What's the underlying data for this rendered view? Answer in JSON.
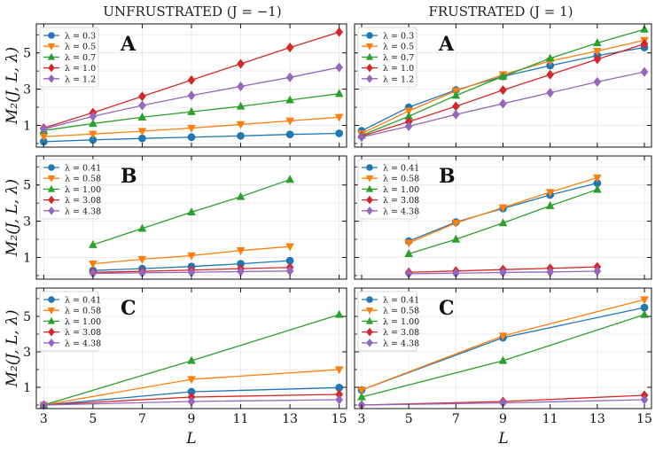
{
  "figure": {
    "col_titles": [
      "UNFRUSTRATED (J = −1)",
      "FRUSTRATED (J = 1)"
    ],
    "ylabel": "M₂(J, L, λ)",
    "xlabel": "L"
  },
  "chart_data": [
    {
      "type": "line",
      "row": 0,
      "col": 0,
      "panel_label": "A",
      "x": [
        3,
        5,
        7,
        9,
        11,
        13,
        15
      ],
      "xlim": [
        2.7,
        15.3
      ],
      "ylim": [
        -0.2,
        6.6
      ],
      "xticks": [
        3,
        5,
        7,
        9,
        11,
        13,
        15
      ],
      "yticks": [
        1,
        3,
        5
      ],
      "grid": true,
      "legend": "top-left",
      "series": [
        {
          "name": "λ = 0.3",
          "color": "#1f77b4",
          "marker": "circle",
          "x": [
            3,
            5,
            7,
            9,
            11,
            13,
            15
          ],
          "values": [
            0.1,
            0.2,
            0.28,
            0.35,
            0.42,
            0.5,
            0.56
          ]
        },
        {
          "name": "λ = 0.5",
          "color": "#ff7f0e",
          "marker": "triangle-down",
          "x": [
            3,
            5,
            7,
            9,
            11,
            13,
            15
          ],
          "values": [
            0.38,
            0.52,
            0.68,
            0.85,
            1.05,
            1.25,
            1.45
          ]
        },
        {
          "name": "λ = 0.7",
          "color": "#2ca02c",
          "marker": "triangle-up",
          "x": [
            3,
            5,
            7,
            9,
            11,
            13,
            15
          ],
          "values": [
            0.72,
            1.1,
            1.45,
            1.75,
            2.05,
            2.4,
            2.75
          ]
        },
        {
          "name": "λ = 1.0",
          "color": "#d62728",
          "marker": "diamond",
          "x": [
            3,
            5,
            7,
            9,
            11,
            13,
            15
          ],
          "values": [
            0.85,
            1.7,
            2.6,
            3.5,
            4.4,
            5.3,
            6.15
          ]
        },
        {
          "name": "λ = 1.2",
          "color": "#9467bd",
          "marker": "diamond",
          "x": [
            3,
            5,
            7,
            9,
            11,
            13,
            15
          ],
          "values": [
            0.8,
            1.5,
            2.1,
            2.65,
            3.15,
            3.65,
            4.2
          ]
        }
      ]
    },
    {
      "type": "line",
      "row": 0,
      "col": 1,
      "panel_label": "A",
      "x": [
        3,
        5,
        7,
        9,
        11,
        13,
        15
      ],
      "xlim": [
        2.7,
        15.3
      ],
      "ylim": [
        -0.2,
        6.6
      ],
      "xticks": [
        3,
        5,
        7,
        9,
        11,
        13,
        15
      ],
      "yticks": [
        1,
        3,
        5
      ],
      "grid": true,
      "legend": "top-left",
      "series": [
        {
          "name": "λ = 0.3",
          "color": "#1f77b4",
          "marker": "circle",
          "x": [
            3,
            5,
            7,
            9,
            11,
            13,
            15
          ],
          "values": [
            0.7,
            2.0,
            2.95,
            3.7,
            4.3,
            4.85,
            5.3
          ]
        },
        {
          "name": "λ = 0.5",
          "color": "#ff7f0e",
          "marker": "triangle-down",
          "x": [
            3,
            5,
            7,
            9,
            11,
            13,
            15
          ],
          "values": [
            0.55,
            1.8,
            2.9,
            3.8,
            4.55,
            5.1,
            5.7
          ]
        },
        {
          "name": "λ = 0.7",
          "color": "#2ca02c",
          "marker": "triangle-up",
          "x": [
            3,
            5,
            7,
            9,
            11,
            13,
            15
          ],
          "values": [
            0.45,
            1.5,
            2.65,
            3.7,
            4.7,
            5.55,
            6.3
          ]
        },
        {
          "name": "λ = 1.0",
          "color": "#d62728",
          "marker": "diamond",
          "x": [
            3,
            5,
            7,
            9,
            11,
            13,
            15
          ],
          "values": [
            0.4,
            1.2,
            2.05,
            2.95,
            3.8,
            4.65,
            5.5
          ]
        },
        {
          "name": "λ = 1.2",
          "color": "#9467bd",
          "marker": "diamond",
          "x": [
            3,
            5,
            7,
            9,
            11,
            13,
            15
          ],
          "values": [
            0.35,
            0.95,
            1.6,
            2.2,
            2.8,
            3.4,
            3.95
          ]
        }
      ]
    },
    {
      "type": "line",
      "row": 1,
      "col": 0,
      "panel_label": "B",
      "x": [
        5,
        7,
        9,
        11,
        13
      ],
      "xlim": [
        2.7,
        15.3
      ],
      "ylim": [
        -0.2,
        6.6
      ],
      "xticks": [
        3,
        5,
        7,
        9,
        11,
        13,
        15
      ],
      "yticks": [
        1,
        3,
        5
      ],
      "grid": true,
      "legend": "top-left",
      "series": [
        {
          "name": "λ = 0.41",
          "color": "#1f77b4",
          "marker": "circle",
          "x": [
            5,
            7,
            9,
            11,
            13
          ],
          "values": [
            0.28,
            0.38,
            0.5,
            0.65,
            0.82
          ]
        },
        {
          "name": "λ = 0.58",
          "color": "#ff7f0e",
          "marker": "triangle-down",
          "x": [
            5,
            7,
            9,
            11,
            13
          ],
          "values": [
            0.65,
            0.9,
            1.1,
            1.38,
            1.6
          ]
        },
        {
          "name": "λ = 1.00",
          "color": "#2ca02c",
          "marker": "triangle-up",
          "x": [
            5,
            7,
            9,
            11,
            13
          ],
          "values": [
            1.7,
            2.6,
            3.5,
            4.35,
            5.3
          ]
        },
        {
          "name": "λ = 3.08",
          "color": "#d62728",
          "marker": "diamond",
          "x": [
            5,
            7,
            9,
            11,
            13
          ],
          "values": [
            0.18,
            0.23,
            0.3,
            0.38,
            0.45
          ]
        },
        {
          "name": "λ = 4.38",
          "color": "#9467bd",
          "marker": "diamond",
          "x": [
            5,
            7,
            9,
            11,
            13
          ],
          "values": [
            0.12,
            0.15,
            0.18,
            0.22,
            0.25
          ]
        }
      ]
    },
    {
      "type": "line",
      "row": 1,
      "col": 1,
      "panel_label": "B",
      "x": [
        5,
        7,
        9,
        11,
        13
      ],
      "xlim": [
        2.7,
        15.3
      ],
      "ylim": [
        -0.2,
        6.6
      ],
      "xticks": [
        3,
        5,
        7,
        9,
        11,
        13,
        15
      ],
      "yticks": [
        1,
        3,
        5
      ],
      "grid": true,
      "legend": "top-left",
      "series": [
        {
          "name": "λ = 0.41",
          "color": "#1f77b4",
          "marker": "circle",
          "x": [
            5,
            7,
            9,
            11,
            13
          ],
          "values": [
            1.9,
            2.95,
            3.7,
            4.45,
            5.1
          ]
        },
        {
          "name": "λ = 0.58",
          "color": "#ff7f0e",
          "marker": "triangle-down",
          "x": [
            5,
            7,
            9,
            11,
            13
          ],
          "values": [
            1.8,
            2.9,
            3.75,
            4.6,
            5.4
          ]
        },
        {
          "name": "λ = 1.00",
          "color": "#2ca02c",
          "marker": "triangle-up",
          "x": [
            5,
            7,
            9,
            11,
            13
          ],
          "values": [
            1.2,
            2.0,
            2.9,
            3.85,
            4.75
          ]
        },
        {
          "name": "λ = 3.08",
          "color": "#d62728",
          "marker": "diamond",
          "x": [
            5,
            7,
            9,
            11,
            13
          ],
          "values": [
            0.18,
            0.25,
            0.33,
            0.4,
            0.48
          ]
        },
        {
          "name": "λ = 4.38",
          "color": "#9467bd",
          "marker": "diamond",
          "x": [
            5,
            7,
            9,
            11,
            13
          ],
          "values": [
            0.1,
            0.13,
            0.17,
            0.2,
            0.24
          ]
        }
      ]
    },
    {
      "type": "line",
      "row": 2,
      "col": 0,
      "panel_label": "C",
      "x": [
        3,
        9,
        15
      ],
      "xlim": [
        2.7,
        15.3
      ],
      "ylim": [
        -0.2,
        6.6
      ],
      "xticks": [
        3,
        5,
        7,
        9,
        11,
        13,
        15
      ],
      "yticks": [
        1,
        3,
        5
      ],
      "grid": true,
      "legend": "top-left",
      "series": [
        {
          "name": "λ = 0.41",
          "color": "#1f77b4",
          "marker": "circle",
          "x": [
            3,
            9,
            15
          ],
          "values": [
            0.0,
            0.75,
            0.98
          ]
        },
        {
          "name": "λ = 0.58",
          "color": "#ff7f0e",
          "marker": "triangle-down",
          "x": [
            3,
            9,
            15
          ],
          "values": [
            0.0,
            1.45,
            2.0
          ]
        },
        {
          "name": "λ = 1.00",
          "color": "#2ca02c",
          "marker": "triangle-up",
          "x": [
            3,
            9,
            15
          ],
          "values": [
            0.0,
            2.5,
            5.1
          ]
        },
        {
          "name": "λ = 3.08",
          "color": "#d62728",
          "marker": "diamond",
          "x": [
            3,
            9,
            15
          ],
          "values": [
            0.0,
            0.45,
            0.6
          ]
        },
        {
          "name": "λ = 4.38",
          "color": "#9467bd",
          "marker": "diamond",
          "x": [
            3,
            9,
            15
          ],
          "values": [
            0.0,
            0.2,
            0.3
          ]
        }
      ]
    },
    {
      "type": "line",
      "row": 2,
      "col": 1,
      "panel_label": "C",
      "x": [
        3,
        9,
        15
      ],
      "xlim": [
        2.7,
        15.3
      ],
      "ylim": [
        -0.2,
        6.6
      ],
      "xticks": [
        3,
        5,
        7,
        9,
        11,
        13,
        15
      ],
      "yticks": [
        1,
        3,
        5
      ],
      "grid": true,
      "legend": "top-left",
      "series": [
        {
          "name": "λ = 0.41",
          "color": "#1f77b4",
          "marker": "circle",
          "x": [
            3,
            9,
            15
          ],
          "values": [
            0.85,
            3.8,
            5.5
          ]
        },
        {
          "name": "λ = 0.58",
          "color": "#ff7f0e",
          "marker": "triangle-down",
          "x": [
            3,
            9,
            15
          ],
          "values": [
            0.85,
            3.9,
            5.95
          ]
        },
        {
          "name": "λ = 1.00",
          "color": "#2ca02c",
          "marker": "triangle-up",
          "x": [
            3,
            9,
            15
          ],
          "values": [
            0.45,
            2.5,
            5.1
          ]
        },
        {
          "name": "λ = 3.08",
          "color": "#d62728",
          "marker": "diamond",
          "x": [
            3,
            9,
            15
          ],
          "values": [
            0.0,
            0.2,
            0.55
          ]
        },
        {
          "name": "λ = 4.38",
          "color": "#9467bd",
          "marker": "diamond",
          "x": [
            3,
            9,
            15
          ],
          "values": [
            0.0,
            0.12,
            0.3
          ]
        }
      ]
    }
  ]
}
